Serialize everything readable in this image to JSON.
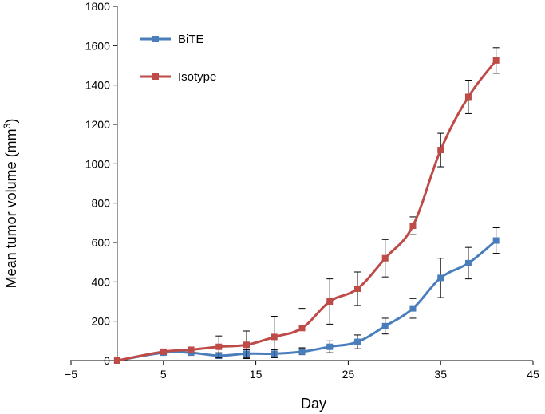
{
  "chart_data": {
    "type": "line",
    "title": "",
    "xlabel": "Day",
    "ylabel_main": "Mean tumor volume (mm",
    "ylabel_sup": "3",
    "ylabel_close": ")",
    "xlim": [
      -5,
      45
    ],
    "ylim": [
      0,
      1800
    ],
    "xticks": [
      -5,
      5,
      15,
      25,
      35,
      45
    ],
    "yticks": [
      0,
      200,
      400,
      600,
      800,
      1000,
      1200,
      1400,
      1600,
      1800
    ],
    "xtick_labels": [
      "−5",
      "5",
      "15",
      "25",
      "35",
      "45"
    ],
    "ytick_labels": [
      "0",
      "200",
      "400",
      "600",
      "800",
      "1000",
      "1200",
      "1400",
      "1600",
      "1800"
    ],
    "grid": false,
    "legend_position": "top-left",
    "series": [
      {
        "name": "BiTE",
        "color": "#4a7ebb",
        "marker_color": "#4a7ebb",
        "x": [
          0,
          5,
          8,
          11,
          14,
          17,
          20,
          23,
          26,
          29,
          32,
          35,
          38,
          41
        ],
        "y": [
          0,
          40,
          40,
          25,
          35,
          35,
          45,
          70,
          95,
          175,
          265,
          420,
          495,
          610
        ],
        "err": [
          0,
          10,
          10,
          15,
          20,
          20,
          15,
          30,
          35,
          40,
          50,
          100,
          80,
          65
        ]
      },
      {
        "name": "Isotype",
        "color": "#be4b48",
        "marker_color": "#be4b48",
        "x": [
          0,
          5,
          8,
          11,
          14,
          17,
          20,
          23,
          26,
          29,
          32,
          35,
          38,
          41
        ],
        "y": [
          0,
          45,
          55,
          70,
          80,
          120,
          165,
          300,
          365,
          520,
          685,
          1070,
          1340,
          1525
        ],
        "err": [
          0,
          10,
          10,
          55,
          70,
          105,
          100,
          115,
          85,
          95,
          45,
          85,
          85,
          65
        ]
      }
    ]
  }
}
